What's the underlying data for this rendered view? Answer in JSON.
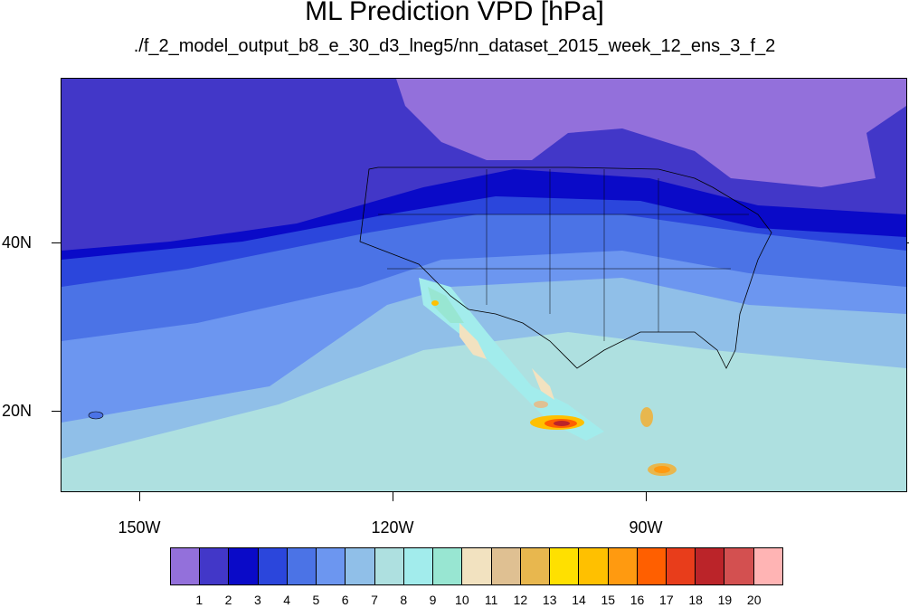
{
  "title": "ML Prediction VPD [hPa]",
  "subtitle": "./f_2_model_output_b8_e_30_d3_lneg5/nn_dataset_2015_week_12_ens_3_f_2",
  "lat_labels": [
    "40N",
    "20N"
  ],
  "lon_labels": [
    "150W",
    "120W",
    "90W"
  ],
  "colorbar": {
    "labels": [
      "1",
      "2",
      "3",
      "4",
      "5",
      "6",
      "7",
      "8",
      "9",
      "10",
      "11",
      "12",
      "13",
      "14",
      "15",
      "16",
      "17",
      "18",
      "19",
      "20"
    ],
    "colors": [
      "#9370db",
      "#4237c8",
      "#0a0ac8",
      "#2b46dc",
      "#4b73e6",
      "#6c96f0",
      "#90bfe8",
      "#aee0e0",
      "#a2ecec",
      "#98e6d2",
      "#f2e2c0",
      "#dfc092",
      "#e8b74e",
      "#ffe000",
      "#ffc000",
      "#ff9a10",
      "#ff5f00",
      "#e83d1b",
      "#bb2429",
      "#d35050",
      "#ffb4b4"
    ]
  }
}
